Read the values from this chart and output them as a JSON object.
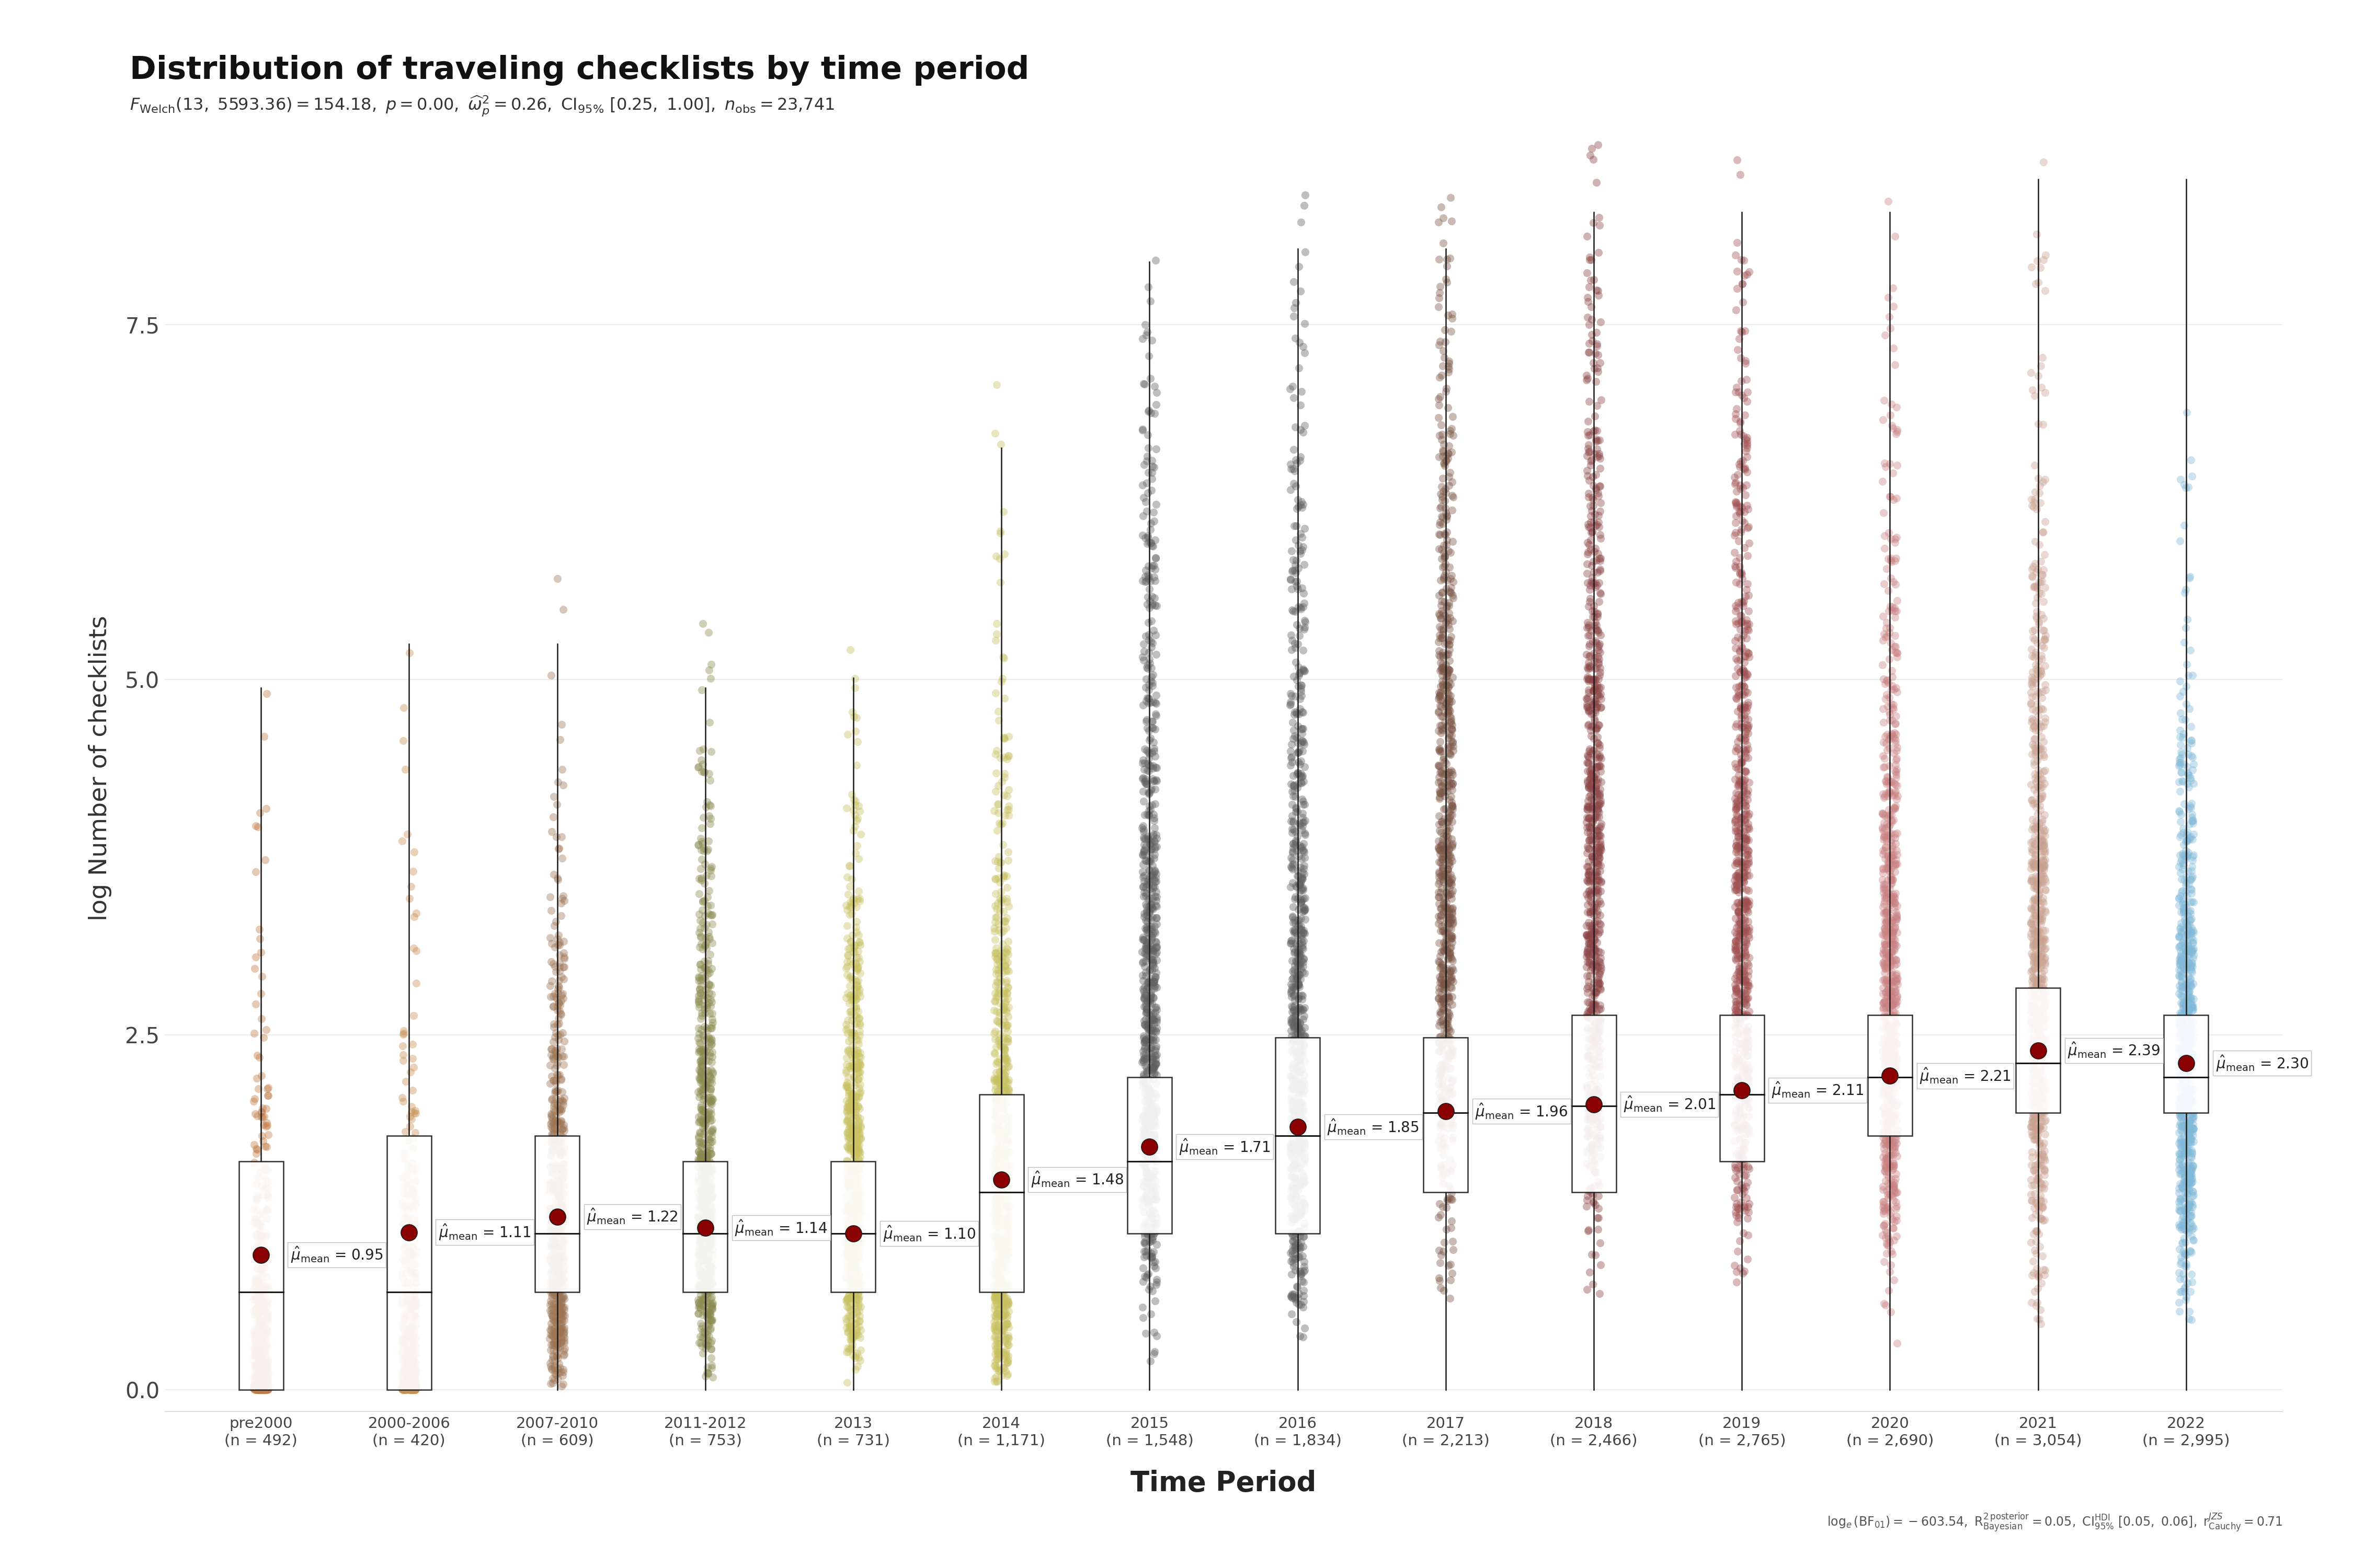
{
  "title": "Distribution of traveling checklists by time period",
  "xlabel": "Time Period",
  "ylabel": "log Number of checklists",
  "categories": [
    "pre2000",
    "2000-2006",
    "2007-2010",
    "2011-2012",
    "2013",
    "2014",
    "2015",
    "2016",
    "2017",
    "2018",
    "2019",
    "2020",
    "2021",
    "2022"
  ],
  "n_labels": [
    "(n = 492)",
    "(n = 420)",
    "(n = 609)",
    "(n = 753)",
    "(n = 731)",
    "(n = 1,171)",
    "(n = 1,548)",
    "(n = 1,834)",
    "(n = 2,213)",
    "(n = 2,466)",
    "(n = 2,765)",
    "(n = 2,690)",
    "(n = 3,054)",
    "(n = 2,995)"
  ],
  "means": [
    0.95,
    1.11,
    1.22,
    1.14,
    1.1,
    1.48,
    1.71,
    1.85,
    1.96,
    2.01,
    2.11,
    2.21,
    2.39,
    2.3
  ],
  "medians": [
    0.69,
    0.69,
    1.1,
    1.1,
    1.1,
    1.39,
    1.61,
    1.79,
    1.95,
    2.0,
    2.08,
    2.2,
    2.3,
    2.2
  ],
  "q1": [
    0.0,
    0.0,
    0.69,
    0.69,
    0.69,
    0.69,
    1.1,
    1.1,
    1.39,
    1.39,
    1.61,
    1.79,
    1.95,
    1.95
  ],
  "q3": [
    1.61,
    1.79,
    1.79,
    1.61,
    1.61,
    2.08,
    2.2,
    2.48,
    2.48,
    2.64,
    2.64,
    2.64,
    2.83,
    2.64
  ],
  "whisker_high": [
    4.94,
    5.25,
    5.25,
    4.94,
    5.01,
    6.63,
    7.94,
    8.03,
    8.03,
    8.29,
    8.29,
    8.29,
    8.52,
    8.52
  ],
  "n_sizes": [
    492,
    420,
    609,
    753,
    731,
    1171,
    1548,
    1834,
    2213,
    2466,
    2765,
    2690,
    3054,
    2995
  ],
  "dot_colors": [
    "#C17842",
    "#C89050",
    "#9C7555",
    "#8A8A50",
    "#C8C060",
    "#C8C060",
    "#606060",
    "#606060",
    "#7A5545",
    "#8B4545",
    "#A05050",
    "#C88080",
    "#C8A090",
    "#80B8D8"
  ],
  "violin_colors": [
    "#C17842",
    "#C89050",
    "#9C7555",
    "#8A8A50",
    "#C8C060",
    "#C8C060",
    "#606060",
    "#606060",
    "#7A5545",
    "#8B4545",
    "#A05050",
    "#C88080",
    "#C8A090",
    "#80B8D8"
  ],
  "mean_color": "#8B0000",
  "ylim": [
    -0.15,
    8.9
  ],
  "yticks": [
    0.0,
    2.5,
    5.0,
    7.5
  ],
  "background_color": "#FFFFFF",
  "grid_color": "#EBEBEB",
  "subtitle_text": "F_Welch(13, 5593.36) = 154.18, p = 0.00, omega2 = 0.26, CI [0.25, 1.00], n_obs = 23741",
  "footnote_text": "log_e(BF_01) = -603.54, R2_Bayesian = 0.05, CI_HDI [0.05, 0.06], r_Cauchy = 0.71"
}
